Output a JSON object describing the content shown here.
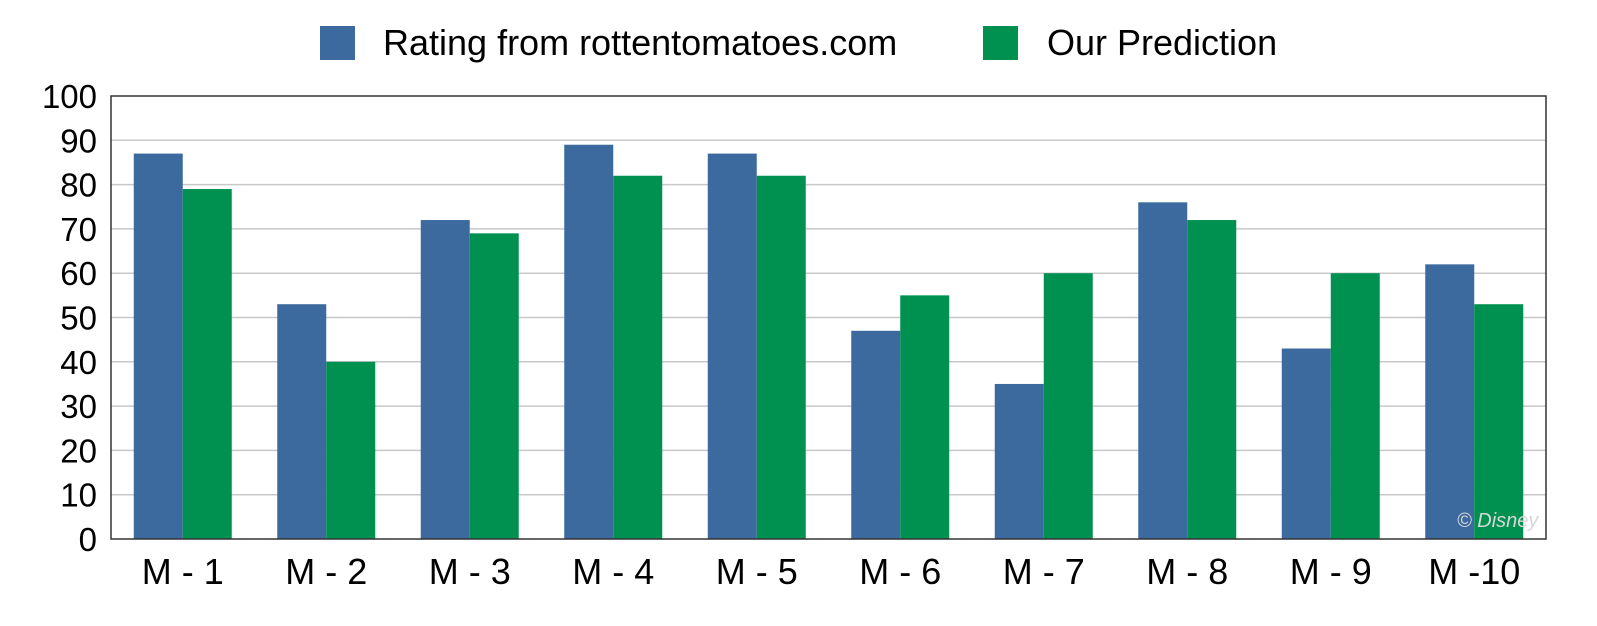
{
  "chart_data": {
    "type": "bar",
    "categories": [
      "M - 1",
      "M - 2",
      "M - 3",
      "M - 4",
      "M - 5",
      "M - 6",
      "M - 7",
      "M - 8",
      "M - 9",
      "M -10"
    ],
    "series": [
      {
        "name": "Rating from rottentomatoes.com",
        "color": "#3c6a9e",
        "values": [
          87,
          53,
          72,
          89,
          87,
          47,
          35,
          76,
          43,
          62
        ]
      },
      {
        "name": "Our Prediction",
        "color": "#009150",
        "values": [
          79,
          40,
          69,
          82,
          82,
          55,
          60,
          72,
          60,
          53
        ]
      }
    ],
    "ylim": [
      0,
      100
    ],
    "yticks": [
      "0",
      "10",
      "20",
      "30",
      "40",
      "50",
      "60",
      "70",
      "80",
      "90",
      "100"
    ],
    "grid": true,
    "legend_position": "top-center",
    "watermark": "© Disney"
  }
}
